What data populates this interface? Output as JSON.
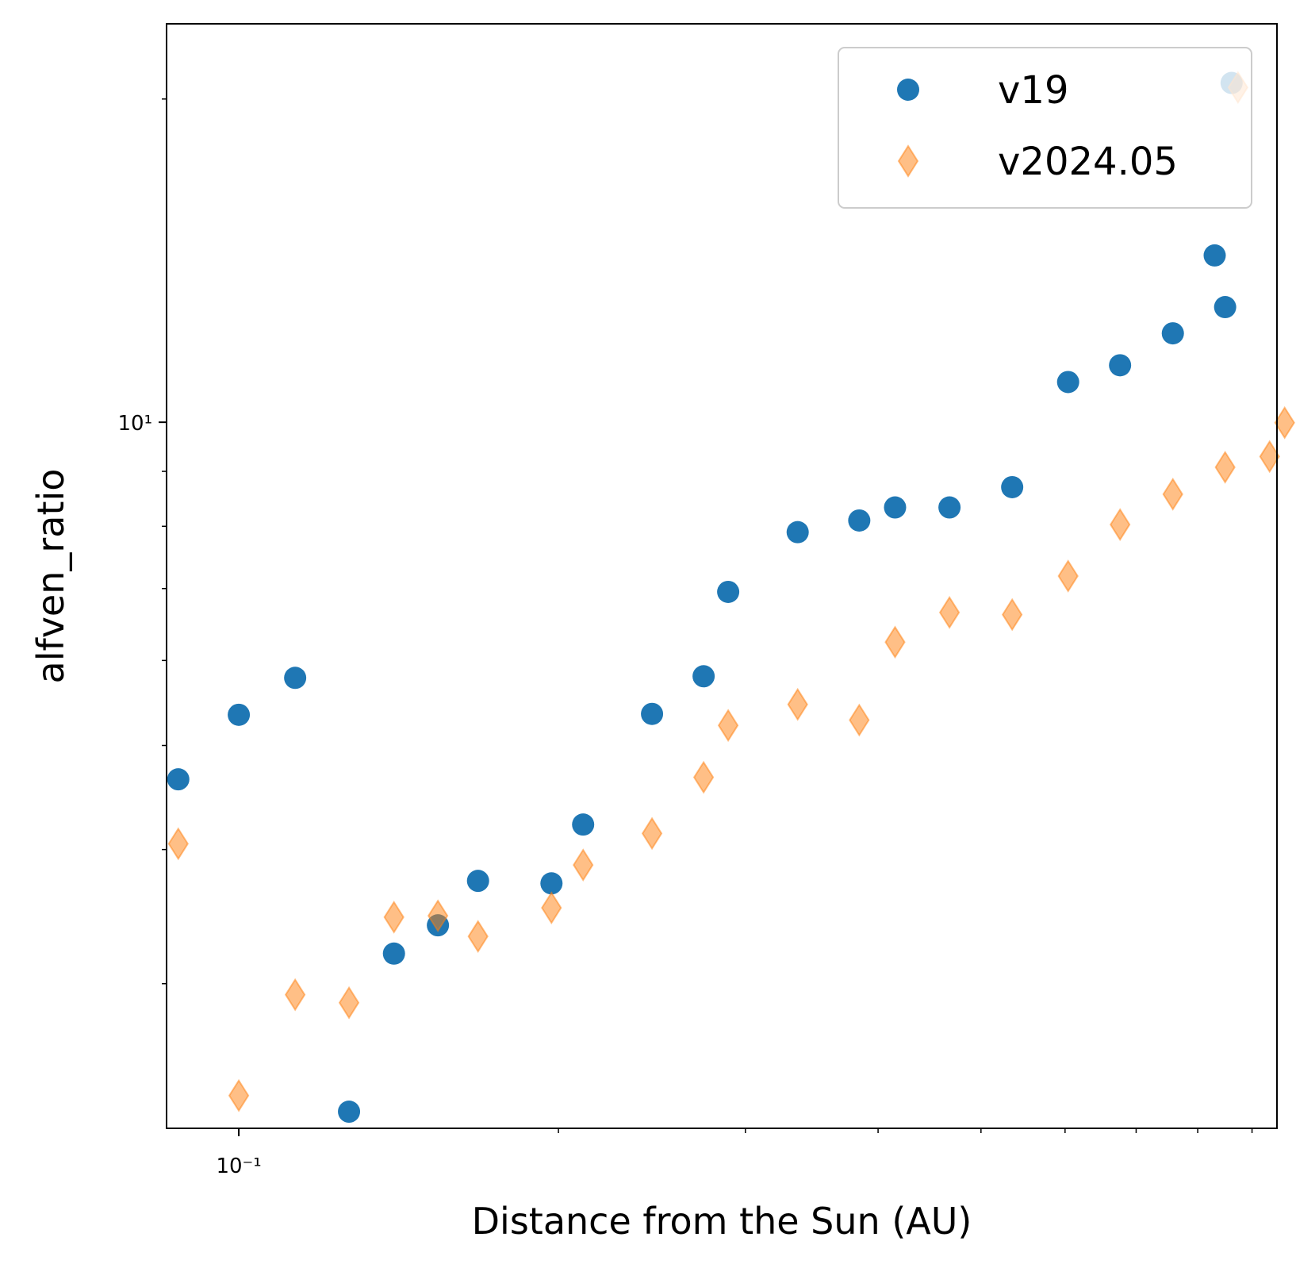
{
  "chart_data": {
    "type": "scatter",
    "xlabel": "Distance from the Sun (AU)",
    "ylabel": "alfven_ratio",
    "xscale": "log",
    "yscale": "log",
    "xlim": [
      0.0855,
      0.95
    ],
    "ylim": [
      2.2,
      23.5
    ],
    "x_major_ticks": [
      0.1
    ],
    "x_major_tick_labels": [
      "10⁻¹"
    ],
    "x_minor_ticks": [
      0.2,
      0.3,
      0.4,
      0.5,
      0.6,
      0.7,
      0.8,
      0.9
    ],
    "y_major_ticks": [
      10
    ],
    "y_major_tick_labels": [
      "10¹"
    ],
    "y_minor_ticks": [
      3,
      4,
      5,
      6,
      7,
      8,
      9,
      20
    ],
    "grid": false,
    "legend": {
      "position": "top-right"
    },
    "series": [
      {
        "name": "v19",
        "marker": "circle",
        "color": "#1f77b4",
        "points": [
          [
            0.0877,
            4.65
          ],
          [
            0.1,
            5.34
          ],
          [
            0.113,
            5.78
          ],
          [
            0.127,
            2.28
          ],
          [
            0.14,
            3.2
          ],
          [
            0.154,
            3.4
          ],
          [
            0.168,
            3.74
          ],
          [
            0.197,
            3.72
          ],
          [
            0.211,
            4.22
          ],
          [
            0.245,
            5.35
          ],
          [
            0.274,
            5.8
          ],
          [
            0.289,
            6.95
          ],
          [
            0.336,
            7.9
          ],
          [
            0.384,
            8.1
          ],
          [
            0.415,
            8.33
          ],
          [
            0.467,
            8.33
          ],
          [
            0.535,
            8.7
          ],
          [
            0.604,
            10.9
          ],
          [
            0.676,
            11.3
          ],
          [
            0.758,
            12.1
          ],
          [
            0.849,
            12.8
          ],
          [
            0.861,
            20.7
          ],
          [
            0.83,
            14.3
          ]
        ]
      },
      {
        "name": "v2024.05",
        "marker": "thin_diamond",
        "color": "#ff7f0e",
        "alpha": 0.5,
        "points": [
          [
            0.0877,
            4.05
          ],
          [
            0.1,
            2.36
          ],
          [
            0.113,
            2.93
          ],
          [
            0.127,
            2.88
          ],
          [
            0.14,
            3.46
          ],
          [
            0.154,
            3.47
          ],
          [
            0.168,
            3.32
          ],
          [
            0.197,
            3.53
          ],
          [
            0.211,
            3.87
          ],
          [
            0.245,
            4.14
          ],
          [
            0.274,
            4.67
          ],
          [
            0.289,
            5.22
          ],
          [
            0.336,
            5.46
          ],
          [
            0.384,
            5.28
          ],
          [
            0.415,
            6.24
          ],
          [
            0.467,
            6.65
          ],
          [
            0.535,
            6.62
          ],
          [
            0.604,
            7.19
          ],
          [
            0.676,
            8.03
          ],
          [
            0.758,
            8.57
          ],
          [
            0.849,
            9.08
          ],
          [
            0.935,
            9.29
          ],
          [
            0.966,
            9.99
          ],
          [
            0.873,
            20.5
          ]
        ]
      }
    ]
  }
}
